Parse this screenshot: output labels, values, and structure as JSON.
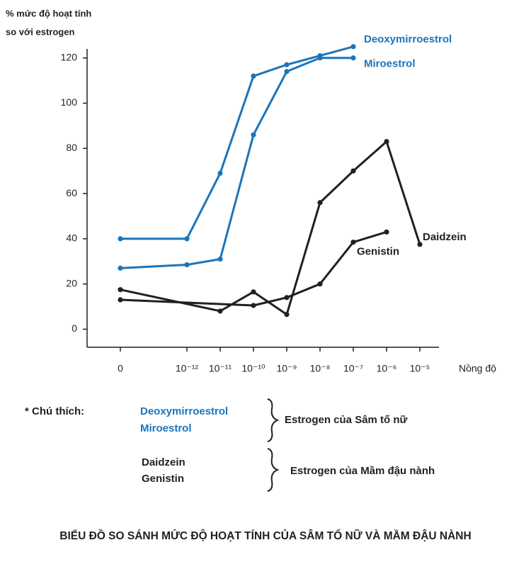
{
  "chart_data": {
    "type": "line",
    "title": "BIỂU ĐỒ SO SÁNH MỨC ĐỘ HOẠT TÍNH CỦA SÂM TỐ NỮ VÀ MẦM ĐẬU NÀNH",
    "ylabel": [
      "% mức độ hoạt tính",
      "so với estrogen"
    ],
    "xlabel": "Nồng độ",
    "categories": [
      "0",
      "10⁻¹²",
      "10⁻¹¹",
      "10⁻¹⁰",
      "10⁻⁹",
      "10⁻⁸",
      "10⁻⁷",
      "10⁻⁶",
      "10⁻⁵"
    ],
    "ylim": [
      -8,
      124
    ],
    "yticks": [
      0,
      20,
      40,
      60,
      80,
      100,
      120
    ],
    "grid": false,
    "series": [
      {
        "name": "Deoxymirroestrol",
        "color": "#1b75bb",
        "x": [
          "0",
          "10⁻¹²",
          "10⁻¹¹",
          "10⁻¹⁰",
          "10⁻⁹",
          "10⁻⁸",
          "10⁻⁷"
        ],
        "values": [
          40,
          40,
          69,
          112,
          117,
          121,
          125
        ]
      },
      {
        "name": "Miroestrol",
        "color": "#1b75bb",
        "x": [
          "0",
          "10⁻¹²",
          "10⁻¹¹",
          "10⁻¹⁰",
          "10⁻⁹",
          "10⁻⁸",
          "10⁻⁷"
        ],
        "values": [
          27,
          28.5,
          31,
          86,
          114,
          120,
          120
        ]
      },
      {
        "name": "Daidzein",
        "color": "#231f20",
        "x": [
          "0",
          "10⁻¹¹",
          "10⁻¹⁰",
          "10⁻⁹",
          "10⁻⁸",
          "10⁻⁷",
          "10⁻⁶",
          "10⁻⁵"
        ],
        "values": [
          17.5,
          8,
          16.5,
          6.5,
          56,
          70,
          83,
          37.5
        ]
      },
      {
        "name": "Genistin",
        "color": "#231f20",
        "x": [
          "0",
          "10⁻¹⁰",
          "10⁻⁹",
          "10⁻⁸",
          "10⁻⁷",
          "10⁻⁶"
        ],
        "values": [
          13,
          10.5,
          14,
          20,
          38.5,
          43
        ]
      }
    ],
    "note": {
      "label": "* Chú thích:",
      "groups": [
        "Estrogen của Sâm tố nữ",
        "Estrogen của Mầm đậu nành"
      ]
    }
  }
}
